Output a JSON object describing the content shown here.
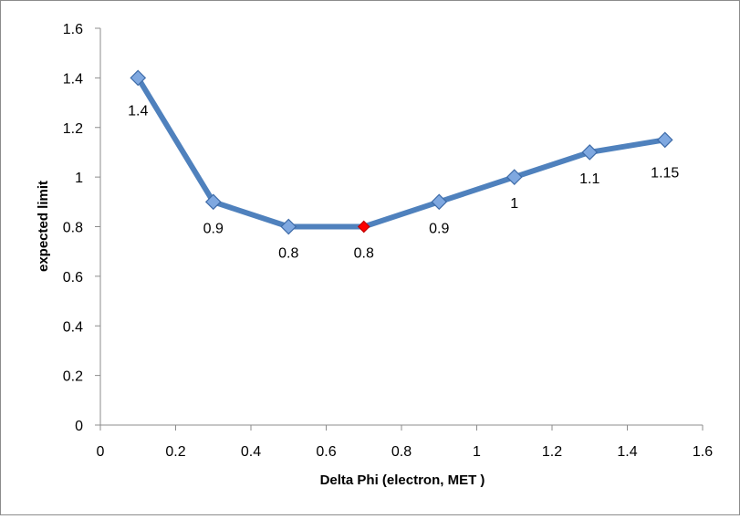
{
  "chart_data": {
    "type": "line",
    "title": "",
    "xlabel": "Delta Phi (electron, MET )",
    "ylabel": "expected limit",
    "xlim": [
      0,
      1.6
    ],
    "ylim": [
      0,
      1.6
    ],
    "x_ticks": [
      "0",
      "0.2",
      "0.4",
      "0.6",
      "0.8",
      "1",
      "1.2",
      "1.4",
      "1.6"
    ],
    "y_ticks": [
      "0",
      "0.2",
      "0.4",
      "0.6",
      "0.8",
      "1",
      "1.2",
      "1.4",
      "1.6"
    ],
    "grid": false,
    "legend": "none",
    "series": [
      {
        "x": [
          0.1,
          0.3,
          0.5,
          0.7,
          0.9,
          1.1,
          1.3,
          1.5
        ],
        "y": [
          1.4,
          0.9,
          0.8,
          0.8,
          0.9,
          1.0,
          1.1,
          1.15
        ],
        "labels": [
          "1.4",
          "0.9",
          "0.8",
          "0.8",
          "0.9",
          "1",
          "1.1",
          "1.15"
        ],
        "color": "#4F81BD",
        "highlight_index": 3,
        "highlight_color": "#FF0000"
      }
    ]
  }
}
